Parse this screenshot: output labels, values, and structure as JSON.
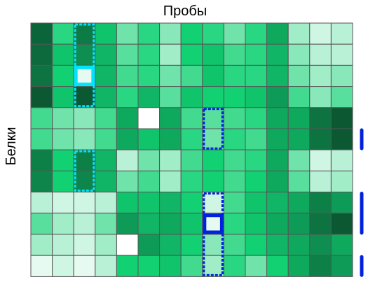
{
  "chart_data": {
    "type": "heatmap",
    "title": "Пробы",
    "ylabel": "Белки",
    "rows": 12,
    "cols": 15,
    "values": [
      [
        0.1,
        0.55,
        0.18,
        0.45,
        0.7,
        0.55,
        0.75,
        0.5,
        0.55,
        0.7,
        0.55,
        0.35,
        0.8,
        0.9,
        0.85
      ],
      [
        0.12,
        0.45,
        0.25,
        0.4,
        0.65,
        0.55,
        0.8,
        0.5,
        0.45,
        0.6,
        0.55,
        0.4,
        0.75,
        0.85,
        0.85
      ],
      [
        0.15,
        0.5,
        0.95,
        0.4,
        0.6,
        0.55,
        0.7,
        0.6,
        0.45,
        0.55,
        0.55,
        0.4,
        0.7,
        0.8,
        0.75
      ],
      [
        0.05,
        0.45,
        0.05,
        0.4,
        0.55,
        0.4,
        0.65,
        0.45,
        0.5,
        0.5,
        0.45,
        0.3,
        0.6,
        0.75,
        0.65
      ],
      [
        0.6,
        0.7,
        0.75,
        0.6,
        0.35,
        1.0,
        0.35,
        0.6,
        0.65,
        0.6,
        0.55,
        0.35,
        0.35,
        0.15,
        0.05
      ],
      [
        0.6,
        0.7,
        0.75,
        0.6,
        0.35,
        0.45,
        0.35,
        0.55,
        0.7,
        0.55,
        0.6,
        0.35,
        0.35,
        0.15,
        0.05
      ],
      [
        0.2,
        0.5,
        0.2,
        0.4,
        0.85,
        0.7,
        0.8,
        0.6,
        0.5,
        0.6,
        0.55,
        0.35,
        0.7,
        0.9,
        0.85
      ],
      [
        0.22,
        0.5,
        0.22,
        0.4,
        0.7,
        0.6,
        0.8,
        0.55,
        0.5,
        0.6,
        0.5,
        0.35,
        0.65,
        0.85,
        0.8
      ],
      [
        0.85,
        0.9,
        0.9,
        0.85,
        0.45,
        0.45,
        0.4,
        0.5,
        0.9,
        0.6,
        0.45,
        0.4,
        0.35,
        0.2,
        0.3
      ],
      [
        0.65,
        0.8,
        0.85,
        0.7,
        0.3,
        0.4,
        0.35,
        0.45,
        0.95,
        0.55,
        0.45,
        0.35,
        0.3,
        0.15,
        0.05
      ],
      [
        0.8,
        0.85,
        0.9,
        0.8,
        1.0,
        0.3,
        0.4,
        0.5,
        0.75,
        0.6,
        0.5,
        0.4,
        0.35,
        0.25,
        0.35
      ],
      [
        0.95,
        0.9,
        0.95,
        0.85,
        0.5,
        0.5,
        0.45,
        0.6,
        0.8,
        0.55,
        0.7,
        0.5,
        0.35,
        0.2,
        0.3
      ]
    ],
    "colors": {
      "low": "#0a4a2c",
      "mid": "#11d173",
      "high": "#ffffff",
      "grid": "#555555"
    },
    "highlights": [
      {
        "color": "#00e5ff",
        "style": "dashed",
        "col": 2,
        "row_start": 0,
        "row_end": 3
      },
      {
        "color": "#00e5ff",
        "style": "solid",
        "col": 2,
        "row_start": 2,
        "row_end": 2
      },
      {
        "color": "#00e5ff",
        "style": "dashed",
        "col": 2,
        "row_start": 6,
        "row_end": 7
      },
      {
        "color": "#0022dd",
        "style": "dashed",
        "col": 8,
        "row_start": 4,
        "row_end": 5
      },
      {
        "color": "#0022dd",
        "style": "dashed",
        "col": 8,
        "row_start": 8,
        "row_end": 11
      },
      {
        "color": "#0022dd",
        "style": "solid",
        "col": 8,
        "row_start": 9,
        "row_end": 9
      }
    ],
    "side_markers": [
      {
        "color": "#0022dd",
        "row_start": 5,
        "row_end": 5
      },
      {
        "color": "#0022dd",
        "row_start": 8,
        "row_end": 9
      },
      {
        "color": "#0022dd",
        "row_start": 11,
        "row_end": 11
      }
    ],
    "legend": "none",
    "grid": true
  }
}
